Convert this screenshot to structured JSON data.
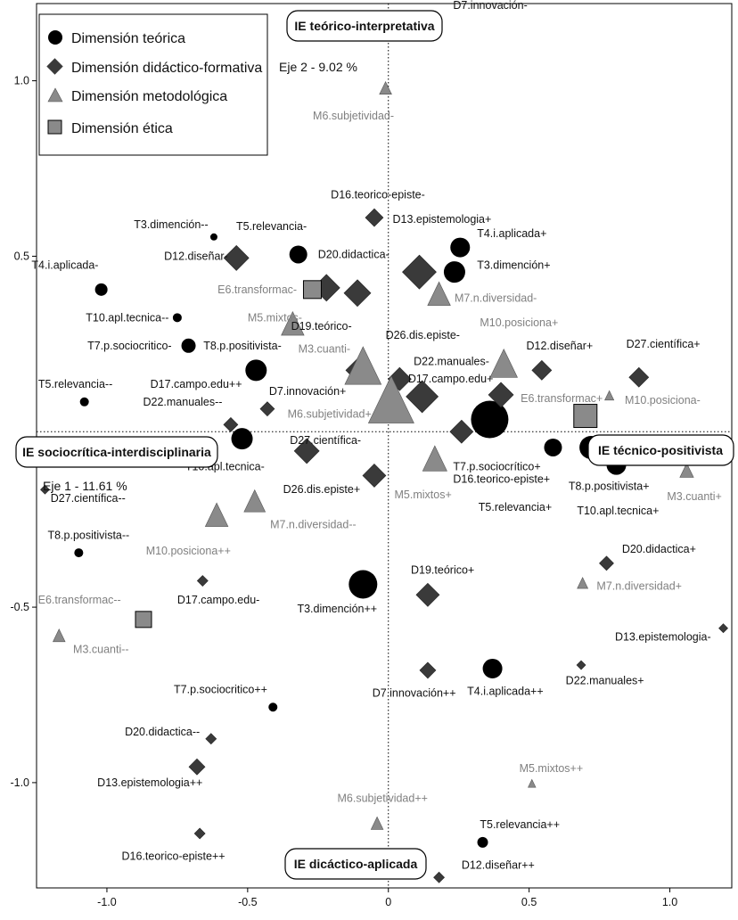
{
  "chart_data": {
    "type": "scatter",
    "title": "",
    "xlim": [
      -1.25,
      1.22
    ],
    "ylim": [
      -1.3,
      1.22
    ],
    "xticks": [
      -1.0,
      -0.5,
      0.0,
      0.5,
      1.0
    ],
    "yticks": [
      1.0,
      0.5,
      -0.5,
      -1.0
    ],
    "xtick_labels": [
      "-1.0",
      "-0.5",
      "0",
      "0.5",
      "1.0"
    ],
    "ytick_labels": [
      "1.0",
      "0.5",
      "-0.5",
      "-1.0"
    ],
    "axis1_label": "Eje 1  -  11.61 %",
    "axis2_label": "Eje 2  -  9.02 %",
    "pole_titles": {
      "top": "IE teórico-interpretativa",
      "bottom": "IE dicáctico-aplicada",
      "left": "IE sociocrítica-interdisciplinaria",
      "right": "IE técnico-positivista"
    },
    "legend": [
      {
        "shape": "circle",
        "label": "Dimensión teórica"
      },
      {
        "shape": "diamond",
        "label": "Dimensión didáctico-formativa"
      },
      {
        "shape": "triangle",
        "label": "Dimensión metodológica"
      },
      {
        "shape": "square",
        "label": "Dimensión ética"
      }
    ],
    "colors": {
      "dark": "#000000",
      "diamond": "#3a3a3a",
      "gray": "#8a8a8a",
      "gray_text": "#808080"
    },
    "points": [
      {
        "label": "T3.dimención--",
        "shape": "circle",
        "x": -0.62,
        "y": 0.555,
        "s": 4,
        "lx": -0.64,
        "ly": 0.59,
        "anchor": "end"
      },
      {
        "label": "T5.relevancia-",
        "shape": "circle",
        "x": -0.32,
        "y": 0.505,
        "s": 10,
        "lx": -0.29,
        "ly": 0.585,
        "anchor": "end"
      },
      {
        "label": "T4.i.aplicada-",
        "shape": "circle",
        "x": -1.02,
        "y": 0.405,
        "s": 7,
        "lx": -1.03,
        "ly": 0.475,
        "anchor": "end"
      },
      {
        "label": "T10.apl.tecnica--",
        "shape": "circle",
        "x": -0.75,
        "y": 0.325,
        "s": 5,
        "lx": -0.78,
        "ly": 0.325,
        "anchor": "end"
      },
      {
        "label": "T7.p.sociocritico-",
        "shape": "circle",
        "x": -0.71,
        "y": 0.245,
        "s": 8,
        "lx": -0.77,
        "ly": 0.245,
        "anchor": "end"
      },
      {
        "label": "T8.p.positivista-",
        "shape": "circle",
        "x": -0.47,
        "y": 0.175,
        "s": 12,
        "lx": -0.38,
        "ly": 0.245,
        "anchor": "end"
      },
      {
        "label": "T5.relevancia--",
        "shape": "circle",
        "x": -1.08,
        "y": 0.085,
        "s": 5,
        "lx": -0.98,
        "ly": 0.135,
        "anchor": "end"
      },
      {
        "label": "T10.apl.tecnica-",
        "shape": "circle",
        "x": -0.52,
        "y": -0.02,
        "s": 12,
        "lx": -0.44,
        "ly": -0.1,
        "anchor": "end"
      },
      {
        "label": "T8.p.positivista--",
        "shape": "circle",
        "x": -1.1,
        "y": -0.345,
        "s": 5,
        "lx": -0.92,
        "ly": -0.295,
        "anchor": "end"
      },
      {
        "label": "T3.dimención++",
        "shape": "circle",
        "x": -0.09,
        "y": -0.435,
        "s": 16,
        "lx": -0.04,
        "ly": -0.505,
        "anchor": "end"
      },
      {
        "label": "T7.p.sociocritico++",
        "shape": "circle",
        "x": -0.41,
        "y": -0.785,
        "s": 5,
        "lx": -0.43,
        "ly": -0.735,
        "anchor": "end"
      },
      {
        "label": "T4.i.aplicada+",
        "shape": "circle",
        "x": 0.255,
        "y": 0.525,
        "s": 11,
        "lx": 0.315,
        "ly": 0.565,
        "anchor": "start"
      },
      {
        "label": "T3.dimención+",
        "shape": "circle",
        "x": 0.235,
        "y": 0.455,
        "s": 12,
        "lx": 0.315,
        "ly": 0.475,
        "anchor": "start"
      },
      {
        "label": "T7.p.sociocrítico+",
        "shape": "circle",
        "x": 0.36,
        "y": 0.035,
        "s": 21,
        "lx": 0.23,
        "ly": -0.1,
        "anchor": "start"
      },
      {
        "label": "T5.relevancia+",
        "shape": "circle",
        "x": 0.585,
        "y": -0.045,
        "s": 10,
        "lx": 0.32,
        "ly": -0.215,
        "anchor": "start"
      },
      {
        "label": "T8.p.positivista+",
        "shape": "circle",
        "x": 0.72,
        "y": -0.045,
        "s": 13,
        "lx": 0.64,
        "ly": -0.155,
        "anchor": "start"
      },
      {
        "label": "T10.apl.tecnica+",
        "shape": "circle",
        "x": 0.81,
        "y": -0.095,
        "s": 11,
        "lx": 0.67,
        "ly": -0.225,
        "anchor": "start"
      },
      {
        "label": "T4.i.aplicada++",
        "shape": "circle",
        "x": 0.37,
        "y": -0.675,
        "s": 11,
        "lx": 0.28,
        "ly": -0.74,
        "anchor": "start"
      },
      {
        "label": "T5.relevancia++",
        "shape": "circle",
        "x": 0.335,
        "y": -1.17,
        "s": 6,
        "lx": 0.325,
        "ly": -1.12,
        "anchor": "start"
      },
      {
        "label": "D16.teorico-episte-",
        "shape": "diamond",
        "x": -0.05,
        "y": 0.61,
        "s": 10,
        "lx": 0.13,
        "ly": 0.675,
        "anchor": "end"
      },
      {
        "label": "D13.epistemologia+",
        "shape": "diamond",
        "x": -0.05,
        "y": 0.61,
        "s": 0,
        "lx": 0.015,
        "ly": 0.605,
        "anchor": "start"
      },
      {
        "label": "D12.diseñar-",
        "shape": "diamond",
        "x": -0.54,
        "y": 0.495,
        "s": 14,
        "lx": -0.57,
        "ly": 0.5,
        "anchor": "end"
      },
      {
        "label": "D20.didactica-",
        "shape": "diamond",
        "x": -0.22,
        "y": 0.41,
        "s": 15,
        "lx": -0.25,
        "ly": 0.505,
        "anchor": "start"
      },
      {
        "label": "",
        "shape": "diamond",
        "x": -0.11,
        "y": 0.395,
        "s": 15
      },
      {
        "label": "",
        "shape": "diamond",
        "x": 0.11,
        "y": 0.455,
        "s": 19
      },
      {
        "label": "D19.teórico-",
        "shape": "diamond",
        "x": -0.11,
        "y": 0.175,
        "s": 13,
        "lx": -0.13,
        "ly": 0.3,
        "anchor": "end"
      },
      {
        "label": "D26.dis.episte-",
        "shape": "diamond",
        "x": 0.04,
        "y": 0.15,
        "s": 13,
        "lx": -0.01,
        "ly": 0.275,
        "anchor": "start"
      },
      {
        "label": "D17.campo.edu+",
        "shape": "diamond",
        "x": 0.12,
        "y": 0.1,
        "s": 18,
        "lx": 0.07,
        "ly": 0.15,
        "anchor": "start"
      },
      {
        "label": "D12.diseñar+",
        "shape": "diamond",
        "x": 0.545,
        "y": 0.175,
        "s": 11,
        "lx": 0.49,
        "ly": 0.245,
        "anchor": "start"
      },
      {
        "label": "D27.científica+",
        "shape": "diamond",
        "x": 0.89,
        "y": 0.155,
        "s": 11,
        "lx": 0.845,
        "ly": 0.25,
        "anchor": "start"
      },
      {
        "label": "",
        "shape": "diamond",
        "x": 0.4,
        "y": 0.105,
        "s": 14
      },
      {
        "label": "D17.campo.edu++",
        "shape": "diamond",
        "x": -0.47,
        "y": 0.175,
        "s": 0,
        "lx": -0.52,
        "ly": 0.135,
        "anchor": "end"
      },
      {
        "label": "D7.innovación+",
        "shape": "diamond",
        "x": -0.13,
        "y": 0.15,
        "s": 0,
        "lx": -0.15,
        "ly": 0.115,
        "anchor": "end"
      },
      {
        "label": "D22.manuales--",
        "shape": "diamond",
        "x": -0.43,
        "y": 0.065,
        "s": 8,
        "lx": -0.59,
        "ly": 0.085,
        "anchor": "end"
      },
      {
        "label": "",
        "shape": "diamond",
        "x": -0.56,
        "y": 0.02,
        "s": 8
      },
      {
        "label": "D27.científica-",
        "shape": "diamond",
        "x": -0.29,
        "y": -0.055,
        "s": 14,
        "lx": -0.35,
        "ly": -0.025,
        "anchor": "start"
      },
      {
        "label": "D26.dis.episte+",
        "shape": "diamond",
        "x": -0.05,
        "y": -0.125,
        "s": 13,
        "lx": -0.1,
        "ly": -0.165,
        "anchor": "end"
      },
      {
        "label": "",
        "shape": "diamond",
        "x": 0.26,
        "y": 0.0,
        "s": 13
      },
      {
        "label": "D22.manuales-",
        "shape": "diamond",
        "x": 0.12,
        "y": 0.1,
        "s": 0,
        "lx": 0.09,
        "ly": 0.2,
        "anchor": "start"
      },
      {
        "label": "D16.teorico-episte+",
        "shape": "diamond",
        "x": 0.26,
        "y": 0.0,
        "s": 0,
        "lx": 0.23,
        "ly": -0.135,
        "anchor": "start"
      },
      {
        "label": "D27.científica--",
        "shape": "diamond",
        "x": -1.22,
        "y": -0.165,
        "s": 5,
        "lx": -1.2,
        "ly": -0.19,
        "anchor": "start"
      },
      {
        "label": "D17.campo.edu-",
        "shape": "diamond",
        "x": -0.66,
        "y": -0.425,
        "s": 6,
        "lx": -0.75,
        "ly": -0.48,
        "anchor": "start"
      },
      {
        "label": "D19.teórico+",
        "shape": "diamond",
        "x": 0.14,
        "y": -0.465,
        "s": 13,
        "lx": 0.08,
        "ly": -0.395,
        "anchor": "start"
      },
      {
        "label": "D20.didactica+",
        "shape": "diamond",
        "x": 0.775,
        "y": -0.375,
        "s": 8,
        "lx": 0.83,
        "ly": -0.335,
        "anchor": "start"
      },
      {
        "label": "D13.epistemologia-",
        "shape": "diamond",
        "x": 1.19,
        "y": -0.56,
        "s": 5,
        "lx": 0.805,
        "ly": -0.585,
        "anchor": "start"
      },
      {
        "label": "D22.manuales+",
        "shape": "diamond",
        "x": 0.685,
        "y": -0.665,
        "s": 5,
        "lx": 0.63,
        "ly": -0.71,
        "anchor": "start"
      },
      {
        "label": "D7.innovación++",
        "shape": "diamond",
        "x": 0.14,
        "y": -0.68,
        "s": 9,
        "lx": 0.24,
        "ly": -0.745,
        "anchor": "end"
      },
      {
        "label": "D20.didactica--",
        "shape": "diamond",
        "x": -0.63,
        "y": -0.875,
        "s": 6,
        "lx": -0.67,
        "ly": -0.855,
        "anchor": "end"
      },
      {
        "label": "D13.epistemologia++",
        "shape": "diamond",
        "x": -0.68,
        "y": -0.955,
        "s": 9,
        "lx": -0.66,
        "ly": -1.0,
        "anchor": "end"
      },
      {
        "label": "D16.teorico-episte++",
        "shape": "diamond",
        "x": -0.67,
        "y": -1.145,
        "s": 6,
        "lx": -0.58,
        "ly": -1.21,
        "anchor": "end"
      },
      {
        "label": "D12.diseñar++",
        "shape": "diamond",
        "x": 0.18,
        "y": -1.27,
        "s": 6,
        "lx": 0.26,
        "ly": -1.235,
        "anchor": "start"
      },
      {
        "label": "D7.innovación-",
        "shape": "diamond",
        "x": 0.0,
        "y": 1.2,
        "s": 0,
        "lx": 0.23,
        "ly": 1.215,
        "anchor": "start"
      },
      {
        "label": "M6.subjetividad-",
        "shape": "triangle",
        "x": -0.01,
        "y": 0.975,
        "s": 8,
        "lx": 0.02,
        "ly": 0.9,
        "anchor": "end"
      },
      {
        "label": "M7.n.diversidad-",
        "shape": "triangle",
        "x": 0.18,
        "y": 0.385,
        "s": 15,
        "lx": 0.235,
        "ly": 0.38,
        "anchor": "start"
      },
      {
        "label": "M5.mixtos-",
        "shape": "triangle",
        "x": -0.34,
        "y": 0.3,
        "s": 15,
        "lx": -0.5,
        "ly": 0.325,
        "anchor": "start"
      },
      {
        "label": "M3.cuanti-",
        "shape": "triangle",
        "x": -0.09,
        "y": 0.175,
        "s": 24,
        "lx": -0.32,
        "ly": 0.235,
        "anchor": "start"
      },
      {
        "label": "M10.posiciona+",
        "shape": "triangle",
        "x": 0.41,
        "y": 0.185,
        "s": 18,
        "lx": 0.325,
        "ly": 0.31,
        "anchor": "start"
      },
      {
        "label": "M10.posiciona-",
        "shape": "triangle",
        "x": 0.785,
        "y": 0.1,
        "s": 6,
        "lx": 0.84,
        "ly": 0.09,
        "anchor": "start"
      },
      {
        "label": "M6.subjetividad+",
        "shape": "triangle",
        "x": 0.01,
        "y": 0.075,
        "s": 30,
        "lx": -0.06,
        "ly": 0.05,
        "anchor": "end"
      },
      {
        "label": "M5.mixtos+",
        "shape": "triangle",
        "x": 0.165,
        "y": -0.085,
        "s": 16,
        "lx": 0.225,
        "ly": -0.18,
        "anchor": "end"
      },
      {
        "label": "M3.cuanti+",
        "shape": "triangle",
        "x": 1.06,
        "y": -0.115,
        "s": 9,
        "lx": 0.99,
        "ly": -0.185,
        "anchor": "start"
      },
      {
        "label": "M7.n.diversidad--",
        "shape": "triangle",
        "x": -0.475,
        "y": -0.205,
        "s": 14,
        "lx": -0.42,
        "ly": -0.265,
        "anchor": "start"
      },
      {
        "label": "M10.posiciona++",
        "shape": "triangle",
        "x": -0.61,
        "y": -0.245,
        "s": 15,
        "lx": -0.56,
        "ly": -0.34,
        "anchor": "end"
      },
      {
        "label": "M7.n.diversidad+",
        "shape": "triangle",
        "x": 0.69,
        "y": -0.435,
        "s": 7,
        "lx": 0.74,
        "ly": -0.44,
        "anchor": "start"
      },
      {
        "label": "M3.cuanti--",
        "shape": "triangle",
        "x": -1.17,
        "y": -0.585,
        "s": 8,
        "lx": -1.12,
        "ly": -0.62,
        "anchor": "start"
      },
      {
        "label": "M5.mixtos++",
        "shape": "triangle",
        "x": 0.51,
        "y": -1.005,
        "s": 5,
        "lx": 0.465,
        "ly": -0.96,
        "anchor": "start"
      },
      {
        "label": "M6.subjetividad++",
        "shape": "triangle",
        "x": -0.04,
        "y": -1.12,
        "s": 8,
        "lx": 0.14,
        "ly": -1.045,
        "anchor": "end"
      },
      {
        "label": "E6.transformac-",
        "shape": "square",
        "x": -0.27,
        "y": 0.405,
        "s": 10,
        "lx": -0.325,
        "ly": 0.405,
        "anchor": "end"
      },
      {
        "label": "E6.transformac+",
        "shape": "square",
        "x": 0.7,
        "y": 0.045,
        "s": 13,
        "lx": 0.47,
        "ly": 0.095,
        "anchor": "start"
      },
      {
        "label": "E6.transformac--",
        "shape": "square",
        "x": -0.87,
        "y": -0.535,
        "s": 9,
        "lx": -0.95,
        "ly": -0.48,
        "anchor": "end"
      }
    ]
  }
}
